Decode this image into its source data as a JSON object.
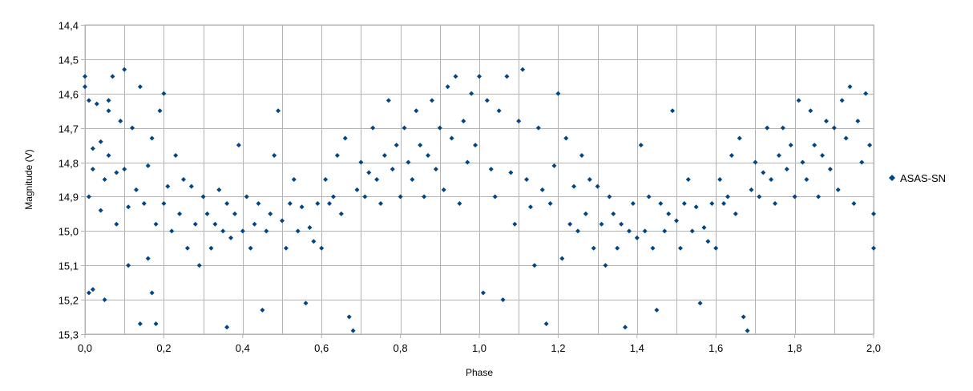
{
  "chart_data": {
    "type": "scatter",
    "xlabel": "Phase",
    "ylabel": "Magnitude (V)",
    "xlim": [
      0.0,
      2.0
    ],
    "ylim": [
      14.4,
      15.3
    ],
    "y_inverted": true,
    "x_ticks": [
      "0,0",
      "0,2",
      "0,4",
      "0,6",
      "0,8",
      "1,0",
      "1,2",
      "1,4",
      "1,6",
      "1,8",
      "2,0"
    ],
    "x_minor_step": 0.1,
    "y_ticks": [
      "14,4",
      "14,5",
      "14,6",
      "14,7",
      "14,8",
      "14,9",
      "15,0",
      "15,1",
      "15,2",
      "15,3"
    ],
    "grid": true,
    "legend_position": "right",
    "series": [
      {
        "name": "ASAS-SN",
        "color": "#004586",
        "marker": "diamond",
        "points": [
          [
            0.0,
            14.55
          ],
          [
            0.0,
            14.58
          ],
          [
            0.01,
            14.62
          ],
          [
            0.01,
            14.9
          ],
          [
            0.02,
            14.76
          ],
          [
            0.02,
            14.82
          ],
          [
            0.01,
            15.18
          ],
          [
            0.02,
            15.17
          ],
          [
            0.03,
            14.63
          ],
          [
            0.04,
            14.74
          ],
          [
            0.04,
            14.94
          ],
          [
            0.05,
            14.85
          ],
          [
            0.06,
            14.65
          ],
          [
            0.06,
            14.62
          ],
          [
            0.05,
            15.2
          ],
          [
            0.06,
            14.78
          ],
          [
            0.07,
            14.55
          ],
          [
            0.08,
            14.83
          ],
          [
            0.08,
            14.98
          ],
          [
            0.09,
            14.68
          ],
          [
            0.1,
            14.53
          ],
          [
            0.1,
            14.82
          ],
          [
            0.11,
            14.93
          ],
          [
            0.11,
            15.1
          ],
          [
            0.12,
            14.7
          ],
          [
            0.13,
            14.88
          ],
          [
            0.14,
            14.58
          ],
          [
            0.14,
            15.27
          ],
          [
            0.15,
            14.92
          ],
          [
            0.16,
            14.81
          ],
          [
            0.16,
            15.08
          ],
          [
            0.17,
            14.73
          ],
          [
            0.17,
            15.18
          ],
          [
            0.18,
            14.98
          ],
          [
            0.18,
            15.27
          ],
          [
            0.19,
            14.65
          ],
          [
            0.2,
            14.92
          ],
          [
            0.2,
            14.6
          ],
          [
            0.21,
            14.87
          ],
          [
            0.22,
            15.0
          ],
          [
            0.23,
            14.78
          ],
          [
            0.24,
            14.95
          ],
          [
            0.25,
            14.85
          ],
          [
            0.26,
            15.05
          ],
          [
            0.27,
            14.87
          ],
          [
            0.28,
            14.98
          ],
          [
            0.29,
            15.1
          ],
          [
            0.3,
            14.9
          ],
          [
            0.31,
            14.95
          ],
          [
            0.32,
            15.05
          ],
          [
            0.33,
            14.98
          ],
          [
            0.34,
            14.88
          ],
          [
            0.35,
            15.0
          ],
          [
            0.36,
            14.92
          ],
          [
            0.36,
            15.28
          ],
          [
            0.37,
            15.02
          ],
          [
            0.38,
            14.95
          ],
          [
            0.39,
            14.75
          ],
          [
            0.4,
            15.0
          ],
          [
            0.41,
            14.9
          ],
          [
            0.42,
            15.05
          ],
          [
            0.43,
            14.98
          ],
          [
            0.44,
            14.92
          ],
          [
            0.45,
            15.23
          ],
          [
            0.46,
            15.0
          ],
          [
            0.47,
            14.95
          ],
          [
            0.48,
            14.78
          ],
          [
            0.49,
            14.65
          ],
          [
            0.5,
            14.97
          ],
          [
            0.51,
            15.05
          ],
          [
            0.52,
            14.92
          ],
          [
            0.53,
            14.85
          ],
          [
            0.54,
            15.0
          ],
          [
            0.55,
            14.93
          ],
          [
            0.56,
            15.21
          ],
          [
            0.57,
            14.99
          ],
          [
            0.58,
            15.03
          ],
          [
            0.59,
            14.92
          ],
          [
            0.6,
            15.05
          ],
          [
            0.61,
            14.85
          ],
          [
            0.62,
            14.92
          ],
          [
            0.63,
            14.9
          ],
          [
            0.64,
            14.78
          ],
          [
            0.65,
            14.95
          ],
          [
            0.66,
            14.73
          ],
          [
            0.67,
            15.25
          ],
          [
            0.68,
            15.29
          ],
          [
            0.69,
            14.88
          ],
          [
            0.7,
            14.8
          ],
          [
            0.71,
            14.9
          ],
          [
            0.72,
            14.83
          ],
          [
            0.73,
            14.7
          ],
          [
            0.74,
            14.85
          ],
          [
            0.75,
            14.92
          ],
          [
            0.76,
            14.78
          ],
          [
            0.77,
            14.62
          ],
          [
            0.78,
            14.82
          ],
          [
            0.79,
            14.75
          ],
          [
            0.8,
            14.9
          ],
          [
            0.81,
            14.7
          ],
          [
            0.82,
            14.8
          ],
          [
            0.83,
            14.85
          ],
          [
            0.84,
            14.65
          ],
          [
            0.85,
            14.75
          ],
          [
            0.86,
            14.9
          ],
          [
            0.87,
            14.78
          ],
          [
            0.88,
            14.62
          ],
          [
            0.89,
            14.82
          ],
          [
            0.9,
            14.7
          ],
          [
            0.91,
            14.88
          ],
          [
            0.92,
            14.58
          ],
          [
            0.93,
            14.73
          ],
          [
            0.94,
            14.55
          ],
          [
            0.95,
            14.92
          ],
          [
            0.96,
            14.68
          ],
          [
            0.97,
            14.8
          ],
          [
            0.98,
            14.6
          ],
          [
            0.99,
            14.75
          ],
          [
            1.0,
            14.55
          ],
          [
            1.01,
            15.18
          ],
          [
            1.02,
            14.62
          ],
          [
            1.03,
            14.82
          ],
          [
            1.04,
            14.9
          ],
          [
            1.05,
            14.65
          ],
          [
            1.06,
            15.2
          ],
          [
            1.07,
            14.55
          ],
          [
            1.08,
            14.83
          ],
          [
            1.09,
            14.98
          ],
          [
            1.1,
            14.68
          ],
          [
            1.11,
            14.53
          ],
          [
            1.12,
            14.85
          ],
          [
            1.13,
            14.93
          ],
          [
            1.14,
            15.1
          ],
          [
            1.15,
            14.7
          ],
          [
            1.16,
            14.88
          ],
          [
            1.17,
            15.27
          ],
          [
            1.18,
            14.92
          ],
          [
            1.19,
            14.81
          ],
          [
            1.2,
            14.6
          ],
          [
            1.21,
            15.08
          ],
          [
            1.22,
            14.73
          ],
          [
            1.23,
            14.98
          ],
          [
            1.24,
            14.87
          ],
          [
            1.25,
            15.0
          ],
          [
            1.26,
            14.78
          ],
          [
            1.27,
            14.95
          ],
          [
            1.28,
            14.85
          ],
          [
            1.29,
            15.05
          ],
          [
            1.3,
            14.87
          ],
          [
            1.31,
            14.98
          ],
          [
            1.32,
            15.1
          ],
          [
            1.33,
            14.9
          ],
          [
            1.34,
            14.95
          ],
          [
            1.35,
            15.05
          ],
          [
            1.36,
            14.98
          ],
          [
            1.37,
            15.28
          ],
          [
            1.38,
            15.0
          ],
          [
            1.39,
            14.92
          ],
          [
            1.4,
            15.02
          ],
          [
            1.41,
            14.75
          ],
          [
            1.42,
            15.0
          ],
          [
            1.43,
            14.9
          ],
          [
            1.44,
            15.05
          ],
          [
            1.45,
            15.23
          ],
          [
            1.46,
            14.92
          ],
          [
            1.47,
            15.0
          ],
          [
            1.48,
            14.95
          ],
          [
            1.49,
            14.65
          ],
          [
            1.5,
            14.97
          ],
          [
            1.51,
            15.05
          ],
          [
            1.52,
            14.92
          ],
          [
            1.53,
            14.85
          ],
          [
            1.54,
            15.0
          ],
          [
            1.55,
            14.93
          ],
          [
            1.56,
            15.21
          ],
          [
            1.57,
            14.99
          ],
          [
            1.58,
            15.03
          ],
          [
            1.59,
            14.92
          ],
          [
            1.6,
            15.05
          ],
          [
            1.61,
            14.85
          ],
          [
            1.62,
            14.92
          ],
          [
            1.63,
            14.9
          ],
          [
            1.64,
            14.78
          ],
          [
            1.65,
            14.95
          ],
          [
            1.66,
            14.73
          ],
          [
            1.67,
            15.25
          ],
          [
            1.68,
            15.29
          ],
          [
            1.69,
            14.88
          ],
          [
            1.7,
            14.8
          ],
          [
            1.71,
            14.9
          ],
          [
            1.72,
            14.83
          ],
          [
            1.73,
            14.7
          ],
          [
            1.74,
            14.85
          ],
          [
            1.75,
            14.92
          ],
          [
            1.76,
            14.78
          ],
          [
            1.77,
            14.7
          ],
          [
            1.78,
            14.82
          ],
          [
            1.79,
            14.75
          ],
          [
            1.8,
            14.9
          ],
          [
            1.81,
            14.62
          ],
          [
            1.82,
            14.8
          ],
          [
            1.83,
            14.85
          ],
          [
            1.84,
            14.65
          ],
          [
            1.85,
            14.75
          ],
          [
            1.86,
            14.9
          ],
          [
            1.87,
            14.78
          ],
          [
            1.88,
            14.68
          ],
          [
            1.89,
            14.82
          ],
          [
            1.9,
            14.7
          ],
          [
            1.91,
            14.88
          ],
          [
            1.92,
            14.62
          ],
          [
            1.93,
            14.73
          ],
          [
            1.94,
            14.58
          ],
          [
            1.95,
            14.92
          ],
          [
            1.96,
            14.68
          ],
          [
            1.97,
            14.8
          ],
          [
            1.98,
            14.6
          ],
          [
            1.99,
            14.75
          ],
          [
            2.0,
            14.95
          ],
          [
            2.0,
            15.05
          ]
        ]
      }
    ]
  }
}
